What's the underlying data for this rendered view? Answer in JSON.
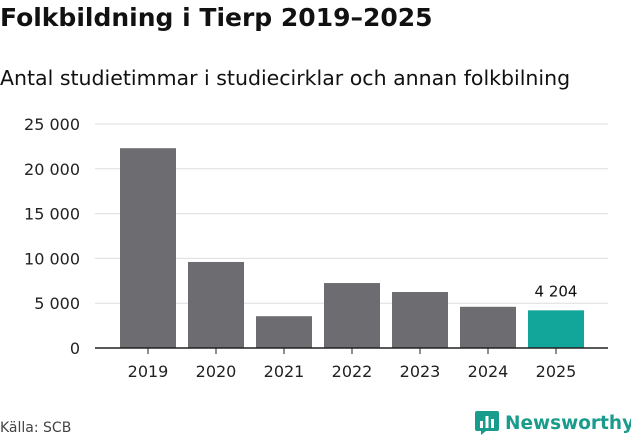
{
  "title": "Folkbildning i Tierp 2019–2025",
  "subtitle": "Antal studietimmar i studiecirklar och annan folkbilning",
  "source": "Källa: SCB",
  "brand": {
    "name": "Newsworthy",
    "logo_icon": "newsworthy-chart-bubble-icon"
  },
  "colors": {
    "bar": "#6d6c71",
    "highlight": "#12a69a",
    "grid": "#dddddd",
    "axis": "#222222",
    "brand": "#1a9c8d"
  },
  "chart_data": {
    "type": "bar",
    "title": "Folkbildning i Tierp 2019–2025",
    "subtitle": "Antal studietimmar i studiecirklar och annan folkbilning",
    "xlabel": "",
    "ylabel": "",
    "categories": [
      "2019",
      "2020",
      "2021",
      "2022",
      "2023",
      "2024",
      "2025"
    ],
    "values": [
      22300,
      9600,
      3550,
      7250,
      6250,
      4600,
      4204
    ],
    "highlight_index": 6,
    "data_labels": [
      {
        "category": "2025",
        "text": "4 204"
      }
    ],
    "ylim": [
      0,
      25000
    ],
    "yticks": [
      0,
      5000,
      10000,
      15000,
      20000,
      25000
    ],
    "ytick_labels": [
      "0",
      "5 000",
      "10 000",
      "15 000",
      "20 000",
      "25 000"
    ],
    "grid": true,
    "legend": "none"
  }
}
